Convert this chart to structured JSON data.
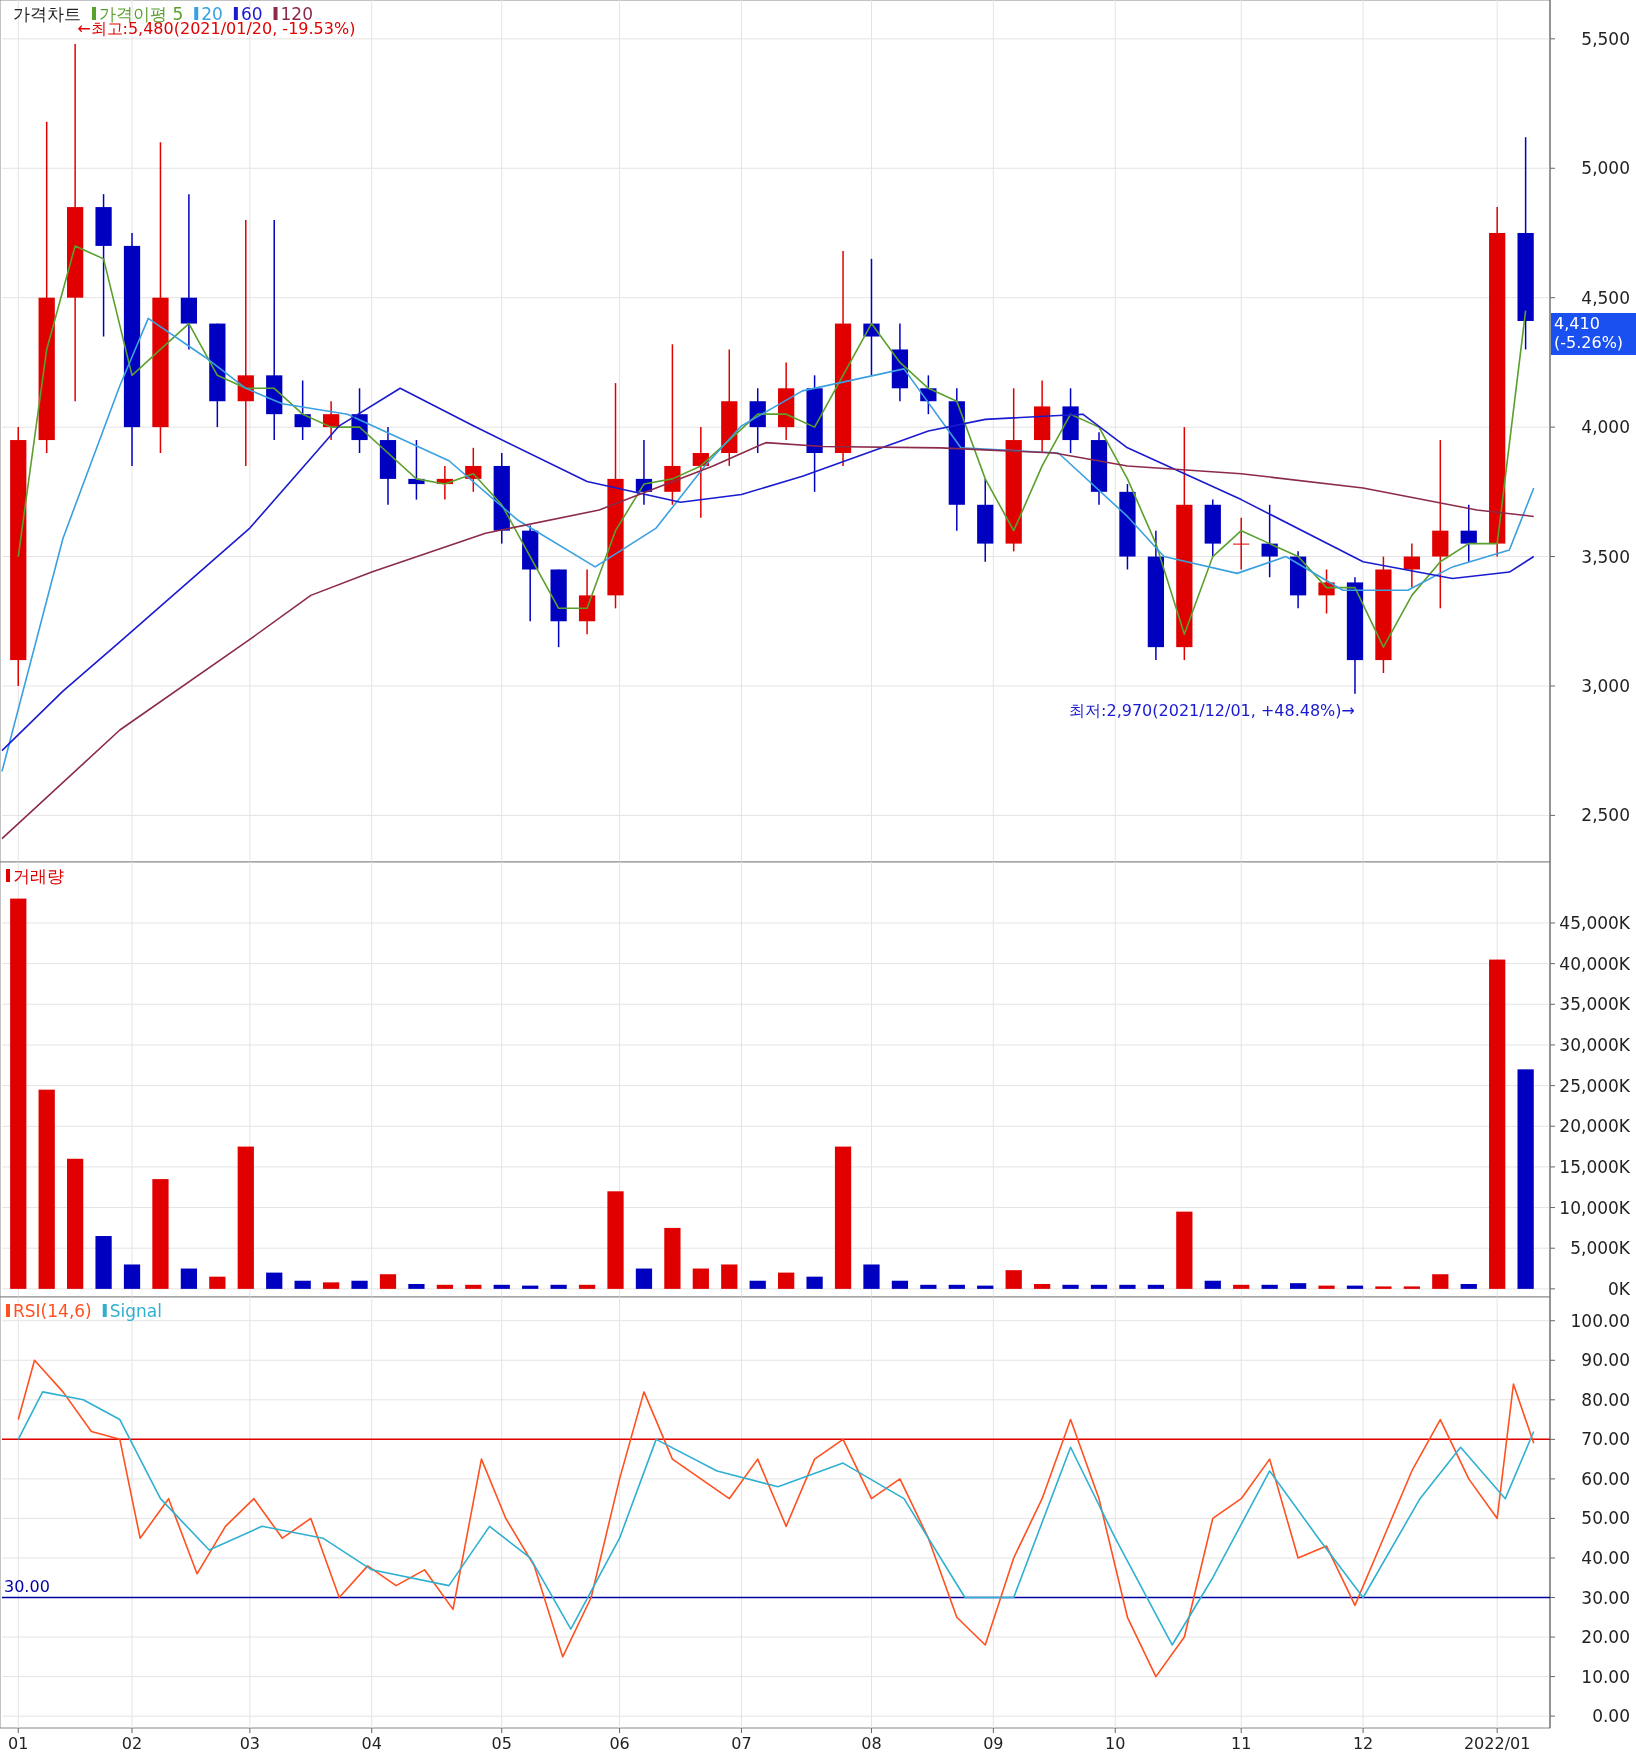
{
  "chart_data": [
    {
      "type": "candlestick",
      "title": "가격차트",
      "legend": "top left",
      "grid": true,
      "tick_labels": "y",
      "x": [
        "2021-01-04",
        "2021-01-11",
        "2021-01-18",
        "2021-01-25",
        "2021-02-01",
        "2021-02-08",
        "2021-02-15",
        "2021-02-22",
        "2021-03-01",
        "2021-03-08",
        "2021-03-15",
        "2021-03-22",
        "2021-03-29",
        "2021-04-05",
        "2021-04-12",
        "2021-04-19",
        "2021-04-26",
        "2021-05-03",
        "2021-05-10",
        "2021-05-17",
        "2021-05-24",
        "2021-05-31",
        "2021-06-07",
        "2021-06-14",
        "2021-06-21",
        "2021-06-28",
        "2021-07-05",
        "2021-07-12",
        "2021-07-19",
        "2021-07-26",
        "2021-08-02",
        "2021-08-09",
        "2021-08-16",
        "2021-08-23",
        "2021-08-30",
        "2021-09-06",
        "2021-09-13",
        "2021-09-20",
        "2021-09-27",
        "2021-10-04",
        "2021-10-11",
        "2021-10-18",
        "2021-10-25",
        "2021-11-01",
        "2021-11-08",
        "2021-11-15",
        "2021-11-22",
        "2021-11-29",
        "2021-12-06",
        "2021-12-13",
        "2021-12-20",
        "2021-12-27",
        "2022-01-03",
        "2022-01-10"
      ],
      "ohlc": [
        [
          3100,
          4000,
          3000,
          3950
        ],
        [
          3950,
          5180,
          3900,
          4500
        ],
        [
          4500,
          5480,
          4100,
          4850
        ],
        [
          4850,
          4900,
          4350,
          4700
        ],
        [
          4700,
          4750,
          3850,
          4000
        ],
        [
          4000,
          5100,
          3900,
          4500
        ],
        [
          4500,
          4900,
          4300,
          4400
        ],
        [
          4400,
          4400,
          4000,
          4100
        ],
        [
          4100,
          4800,
          3850,
          4200
        ],
        [
          4200,
          4800,
          3950,
          4050
        ],
        [
          4050,
          4180,
          3950,
          4000
        ],
        [
          4000,
          4100,
          3950,
          4050
        ],
        [
          4050,
          4150,
          3900,
          3950
        ],
        [
          3950,
          4000,
          3700,
          3800
        ],
        [
          3800,
          3950,
          3720,
          3780
        ],
        [
          3780,
          3850,
          3720,
          3800
        ],
        [
          3800,
          3920,
          3750,
          3850
        ],
        [
          3850,
          3900,
          3550,
          3600
        ],
        [
          3600,
          3620,
          3250,
          3450
        ],
        [
          3450,
          3450,
          3150,
          3250
        ],
        [
          3250,
          3450,
          3200,
          3350
        ],
        [
          3350,
          4170,
          3300,
          3800
        ],
        [
          3800,
          3950,
          3700,
          3750
        ],
        [
          3750,
          4320,
          3700,
          3850
        ],
        [
          3850,
          4000,
          3650,
          3900
        ],
        [
          3900,
          4300,
          3850,
          4100
        ],
        [
          4100,
          4150,
          3900,
          4000
        ],
        [
          4000,
          4250,
          3950,
          4150
        ],
        [
          4150,
          4200,
          3750,
          3900
        ],
        [
          3900,
          4680,
          3850,
          4400
        ],
        [
          4400,
          4650,
          4200,
          4350
        ],
        [
          4300,
          4400,
          4100,
          4150
        ],
        [
          4150,
          4200,
          4050,
          4100
        ],
        [
          4100,
          4150,
          3600,
          3700
        ],
        [
          3700,
          3800,
          3480,
          3550
        ],
        [
          3550,
          4150,
          3520,
          3950
        ],
        [
          3950,
          4180,
          3900,
          4080
        ],
        [
          4080,
          4150,
          3900,
          3950
        ],
        [
          3950,
          3980,
          3700,
          3750
        ],
        [
          3750,
          3780,
          3450,
          3500
        ],
        [
          3500,
          3600,
          3100,
          3150
        ],
        [
          3150,
          4000,
          3100,
          3700
        ],
        [
          3700,
          3720,
          3500,
          3550
        ],
        [
          3550,
          3650,
          3450,
          3550
        ],
        [
          3550,
          3700,
          3420,
          3500
        ],
        [
          3500,
          3520,
          3300,
          3350
        ],
        [
          3350,
          3450,
          3280,
          3400
        ],
        [
          3400,
          3420,
          2970,
          3100
        ],
        [
          3100,
          3500,
          3050,
          3450
        ],
        [
          3450,
          3550,
          3380,
          3500
        ],
        [
          3500,
          3950,
          3300,
          3600
        ],
        [
          3600,
          3700,
          3480,
          3550
        ],
        [
          3550,
          4850,
          3500,
          4750
        ],
        [
          4750,
          5120,
          4300,
          4410
        ]
      ],
      "colors": [
        "#e00000",
        "#e00000",
        "#e00000",
        "#0000c0",
        "#0000c0",
        "#e00000",
        "#0000c0",
        "#0000c0",
        "#e00000",
        "#0000c0",
        "#0000c0",
        "#e00000",
        "#0000c0",
        "#0000c0",
        "#0000c0",
        "#e00000",
        "#e00000",
        "#0000c0",
        "#0000c0",
        "#0000c0",
        "#e00000",
        "#e00000",
        "#0000c0",
        "#e00000",
        "#e00000",
        "#e00000",
        "#0000c0",
        "#e00000",
        "#0000c0",
        "#e00000",
        "#0000c0",
        "#0000c0",
        "#0000c0",
        "#0000c0",
        "#0000c0",
        "#e00000",
        "#e00000",
        "#0000c0",
        "#0000c0",
        "#0000c0",
        "#0000c0",
        "#e00000",
        "#0000c0",
        "#e00000",
        "#0000c0",
        "#0000c0",
        "#e00000",
        "#0000c0",
        "#e00000",
        "#e00000",
        "#e00000",
        "#0000c0",
        "#e00000",
        "#0000c0"
      ],
      "series": [
        {
          "type": "line",
          "name": "가격이평 5",
          "color": "#5aa02c",
          "values": [
            3500,
            4300,
            4700,
            4650,
            4200,
            4300,
            4400,
            4200,
            4150,
            4150,
            4050,
            4000,
            4000,
            3900,
            3800,
            3780,
            3820,
            3700,
            3500,
            3300,
            3300,
            3600,
            3780,
            3800,
            3850,
            3950,
            4050,
            4050,
            4000,
            4200,
            4400,
            4250,
            4150,
            4100,
            3800,
            3600,
            3850,
            4050,
            4000,
            3800,
            3550,
            3200,
            3500,
            3600,
            3550,
            3500,
            3380,
            3380,
            3150,
            3350,
            3480,
            3550,
            3550,
            4450
          ]
        },
        {
          "type": "line",
          "name": "20",
          "color": "#3aa0e0",
          "x": [
            "2020-12-31",
            "2021-01-15",
            "2021-01-29",
            "2021-02-05",
            "2021-02-19",
            "2021-03-01",
            "2021-03-10",
            "2021-03-26",
            "2021-04-20",
            "2021-05-07",
            "2021-05-26",
            "2021-06-10",
            "2021-06-22",
            "2021-07-01",
            "2021-07-16",
            "2021-08-10",
            "2021-08-24",
            "2021-09-17",
            "2021-10-04",
            "2021-10-13",
            "2021-10-31",
            "2021-11-12",
            "2021-11-26",
            "2021-12-12",
            "2021-12-23",
            "2022-01-06",
            "2022-01-12"
          ],
          "values": [
            2670,
            3570,
            4160,
            4420,
            4270,
            4150,
            4090,
            4050,
            3870,
            3640,
            3460,
            3610,
            3850,
            4005,
            4140,
            4225,
            3920,
            3900,
            3655,
            3500,
            3435,
            3500,
            3370,
            3370,
            3460,
            3525,
            3765
          ]
        },
        {
          "type": "line",
          "name": "60",
          "color": "#1a1ad0",
          "x": [
            "2020-12-31",
            "2021-01-15",
            "2021-01-29",
            "2021-03-02",
            "2021-03-24",
            "2021-04-08",
            "2021-04-26",
            "2021-05-24",
            "2021-06-16",
            "2021-07-01",
            "2021-07-16",
            "2021-08-16",
            "2021-08-30",
            "2021-09-23",
            "2021-10-04",
            "2021-11-01",
            "2021-12-01",
            "2021-12-23",
            "2022-01-06",
            "2022-01-12"
          ],
          "values": [
            2750,
            2980,
            3170,
            3610,
            4005,
            4150,
            4005,
            3790,
            3710,
            3740,
            3810,
            3985,
            4030,
            4050,
            3920,
            3720,
            3480,
            3415,
            3440,
            3500
          ]
        },
        {
          "type": "line",
          "name": "120",
          "color": "#8b2a4a",
          "x": [
            "2020-12-31",
            "2021-01-29",
            "2021-03-02",
            "2021-03-17",
            "2021-04-01",
            "2021-04-29",
            "2021-05-27",
            "2021-06-24",
            "2021-07-07",
            "2021-07-21",
            "2021-08-19",
            "2021-09-16",
            "2021-10-04",
            "2021-11-01",
            "2021-12-01",
            "2021-12-29",
            "2022-01-12"
          ],
          "values": [
            2410,
            2830,
            3180,
            3350,
            3440,
            3590,
            3680,
            3850,
            3940,
            3925,
            3920,
            3900,
            3850,
            3820,
            3765,
            3680,
            3655
          ]
        }
      ],
      "xlim": [
        "2020-12-31",
        "2022-01-16"
      ],
      "ylim": [
        2320,
        5650
      ],
      "xticks": [
        {
          "value": "2021-01-04",
          "label": null
        },
        {
          "value": "2021-02-01",
          "label": null
        },
        {
          "value": "2021-03-02",
          "label": null
        },
        {
          "value": "2021-04-01",
          "label": null
        },
        {
          "value": "2021-05-03",
          "label": null
        },
        {
          "value": "2021-06-01",
          "label": null
        },
        {
          "value": "2021-07-01",
          "label": null
        },
        {
          "value": "2021-08-02",
          "label": null
        },
        {
          "value": "2021-09-01",
          "label": null
        },
        {
          "value": "2021-10-01",
          "label": null
        },
        {
          "value": "2021-11-01",
          "label": null
        },
        {
          "value": "2021-12-01",
          "label": null
        },
        {
          "value": "2022-01-03",
          "label": null
        }
      ],
      "yticks": [
        {
          "value": 2500,
          "label": "2,500"
        },
        {
          "value": 3000,
          "label": "3,000"
        },
        {
          "value": 3500,
          "label": "3,500"
        },
        {
          "value": 4000,
          "label": "4,000"
        },
        {
          "value": 4500,
          "label": "4,500"
        },
        {
          "value": 5000,
          "label": "5,000"
        },
        {
          "value": 5500,
          "label": "5,500"
        }
      ],
      "annotations": [
        {
          "text": "←최고:5,480(2021/01/20, -19.53%)",
          "x": "2021-01-18",
          "y": 5480
        },
        {
          "text": "최저:2,970(2021/12/01, +48.48%)→",
          "x": "2021-11-29",
          "y": 2970
        },
        {
          "text": "4,410\n(-5.26%)",
          "x": "2022-01-10",
          "y": 4410
        }
      ]
    },
    {
      "type": "bar",
      "legend": "top left",
      "grid": true,
      "tick_labels": "y",
      "x": [
        "2021-01-04",
        "2021-01-11",
        "2021-01-18",
        "2021-01-25",
        "2021-02-01",
        "2021-02-08",
        "2021-02-15",
        "2021-02-22",
        "2021-03-01",
        "2021-03-08",
        "2021-03-15",
        "2021-03-22",
        "2021-03-29",
        "2021-04-05",
        "2021-04-12",
        "2021-04-19",
        "2021-04-26",
        "2021-05-03",
        "2021-05-10",
        "2021-05-17",
        "2021-05-24",
        "2021-05-31",
        "2021-06-07",
        "2021-06-14",
        "2021-06-21",
        "2021-06-28",
        "2021-07-05",
        "2021-07-12",
        "2021-07-19",
        "2021-07-26",
        "2021-08-02",
        "2021-08-09",
        "2021-08-16",
        "2021-08-23",
        "2021-08-30",
        "2021-09-06",
        "2021-09-13",
        "2021-09-20",
        "2021-09-27",
        "2021-10-04",
        "2021-10-11",
        "2021-10-18",
        "2021-10-25",
        "2021-11-01",
        "2021-11-08",
        "2021-11-15",
        "2021-11-22",
        "2021-11-29",
        "2021-12-06",
        "2021-12-13",
        "2021-12-20",
        "2021-12-27",
        "2022-01-03",
        "2022-01-10"
      ],
      "series": [
        {
          "name": "거래량",
          "color": "#e00000",
          "values": [
            48000,
            24500,
            16000,
            6500,
            3000,
            13500,
            2500,
            1500,
            17500,
            2000,
            1000,
            800,
            1000,
            1800,
            600,
            500,
            500,
            500,
            400,
            500,
            500,
            12000,
            2500,
            7500,
            2500,
            3000,
            1000,
            2000,
            1500,
            17500,
            3000,
            1000,
            500,
            500,
            400,
            2300,
            600,
            500,
            500,
            500,
            500,
            9500,
            1000,
            500,
            500,
            700,
            400,
            400,
            300,
            300,
            1800,
            600,
            40500,
            27000
          ],
          "colors": [
            "#e00000",
            "#e00000",
            "#e00000",
            "#0000c0",
            "#0000c0",
            "#e00000",
            "#0000c0",
            "#e00000",
            "#e00000",
            "#0000c0",
            "#0000c0",
            "#e00000",
            "#0000c0",
            "#e00000",
            "#0000c0",
            "#e00000",
            "#e00000",
            "#0000c0",
            "#0000c0",
            "#0000c0",
            "#e00000",
            "#e00000",
            "#0000c0",
            "#e00000",
            "#e00000",
            "#e00000",
            "#0000c0",
            "#e00000",
            "#0000c0",
            "#e00000",
            "#0000c0",
            "#0000c0",
            "#0000c0",
            "#0000c0",
            "#0000c0",
            "#e00000",
            "#e00000",
            "#0000c0",
            "#0000c0",
            "#0000c0",
            "#0000c0",
            "#e00000",
            "#0000c0",
            "#e00000",
            "#0000c0",
            "#0000c0",
            "#e00000",
            "#0000c0",
            "#e00000",
            "#e00000",
            "#e00000",
            "#0000c0",
            "#e00000",
            "#0000c0"
          ]
        }
      ],
      "xlim": [
        "2020-12-31",
        "2022-01-16"
      ],
      "ylim": [
        -1000,
        52500
      ],
      "xticks": [
        {
          "value": "2021-01-04",
          "label": null
        },
        {
          "value": "2021-02-01",
          "label": null
        },
        {
          "value": "2021-03-02",
          "label": null
        },
        {
          "value": "2021-04-01",
          "label": null
        },
        {
          "value": "2021-05-03",
          "label": null
        },
        {
          "value": "2021-06-01",
          "label": null
        },
        {
          "value": "2021-07-01",
          "label": null
        },
        {
          "value": "2021-08-02",
          "label": null
        },
        {
          "value": "2021-09-01",
          "label": null
        },
        {
          "value": "2021-10-01",
          "label": null
        },
        {
          "value": "2021-11-01",
          "label": null
        },
        {
          "value": "2021-12-01",
          "label": null
        },
        {
          "value": "2022-01-03",
          "label": null
        }
      ],
      "yticks": [
        {
          "value": 0,
          "label": "0K"
        },
        {
          "value": 5000,
          "label": "5,000K"
        },
        {
          "value": 10000,
          "label": "10,000K"
        },
        {
          "value": 15000,
          "label": "15,000K"
        },
        {
          "value": 20000,
          "label": "20,000K"
        },
        {
          "value": 25000,
          "label": "25,000K"
        },
        {
          "value": 30000,
          "label": "30,000K"
        },
        {
          "value": 35000,
          "label": "35,000K"
        },
        {
          "value": 40000,
          "label": "40,000K"
        },
        {
          "value": 45000,
          "label": "45,000K"
        }
      ]
    },
    {
      "type": "line",
      "legend": "top left",
      "grid": true,
      "series": [
        {
          "name": "RSI(14,6)",
          "color": "#ff5020",
          "x": [
            "2021-01-04",
            "2021-01-08",
            "2021-01-15",
            "2021-01-22",
            "2021-01-29",
            "2021-02-03",
            "2021-02-10",
            "2021-02-17",
            "2021-02-24",
            "2021-03-03",
            "2021-03-10",
            "2021-03-17",
            "2021-03-24",
            "2021-03-31",
            "2021-04-07",
            "2021-04-14",
            "2021-04-21",
            "2021-04-28",
            "2021-05-04",
            "2021-05-11",
            "2021-05-18",
            "2021-05-25",
            "2021-06-01",
            "2021-06-07",
            "2021-06-14",
            "2021-06-21",
            "2021-06-28",
            "2021-07-05",
            "2021-07-12",
            "2021-07-19",
            "2021-07-26",
            "2021-08-02",
            "2021-08-09",
            "2021-08-16",
            "2021-08-23",
            "2021-08-30",
            "2021-09-06",
            "2021-09-13",
            "2021-09-20",
            "2021-09-27",
            "2021-10-04",
            "2021-10-11",
            "2021-10-18",
            "2021-10-25",
            "2021-11-01",
            "2021-11-08",
            "2021-11-15",
            "2021-11-22",
            "2021-11-29",
            "2021-12-06",
            "2021-12-13",
            "2021-12-20",
            "2021-12-27",
            "2022-01-03",
            "2022-01-07",
            "2022-01-12"
          ],
          "values": [
            75,
            90,
            82,
            72,
            70,
            45,
            55,
            36,
            48,
            55,
            45,
            50,
            30,
            38,
            33,
            37,
            27,
            65,
            50,
            38,
            15,
            30,
            60,
            82,
            65,
            60,
            55,
            65,
            48,
            65,
            70,
            55,
            60,
            45,
            25,
            18,
            40,
            55,
            75,
            55,
            25,
            10,
            20,
            50,
            55,
            65,
            40,
            43,
            28,
            45,
            62,
            75,
            60,
            50,
            84,
            69
          ]
        },
        {
          "name": "Signal",
          "color": "#30b0d0",
          "x": [
            "2021-01-04",
            "2021-01-10",
            "2021-01-20",
            "2021-01-29",
            "2021-02-08",
            "2021-02-20",
            "2021-03-05",
            "2021-03-20",
            "2021-04-01",
            "2021-04-20",
            "2021-04-30",
            "2021-05-10",
            "2021-05-20",
            "2021-06-01",
            "2021-06-10",
            "2021-06-25",
            "2021-07-10",
            "2021-07-26",
            "2021-08-10",
            "2021-08-25",
            "2021-09-06",
            "2021-09-20",
            "2021-10-01",
            "2021-10-15",
            "2021-10-25",
            "2021-11-08",
            "2021-11-20",
            "2021-12-01",
            "2021-12-15",
            "2021-12-25",
            "2022-01-05",
            "2022-01-12"
          ],
          "values": [
            70,
            82,
            80,
            75,
            55,
            42,
            48,
            45,
            37,
            33,
            48,
            40,
            22,
            45,
            70,
            62,
            58,
            64,
            55,
            30,
            30,
            68,
            45,
            18,
            35,
            62,
            45,
            30,
            55,
            68,
            55,
            72
          ]
        }
      ],
      "ref_lines": [
        {
          "axis": "y",
          "value": 70,
          "color": "#e00000"
        },
        {
          "axis": "y",
          "value": 30,
          "label": "30.00",
          "color": "#0000a0"
        }
      ],
      "xlim": [
        "2020-12-31",
        "2022-01-16"
      ],
      "ylim": [
        -3,
        106
      ],
      "xticks": [
        {
          "value": "2021-01-04",
          "label": "01"
        },
        {
          "value": "2021-02-01",
          "label": "02"
        },
        {
          "value": "2021-03-02",
          "label": "03"
        },
        {
          "value": "2021-04-01",
          "label": "04"
        },
        {
          "value": "2021-05-03",
          "label": "05"
        },
        {
          "value": "2021-06-01",
          "label": "06"
        },
        {
          "value": "2021-07-01",
          "label": "07"
        },
        {
          "value": "2021-08-02",
          "label": "08"
        },
        {
          "value": "2021-09-01",
          "label": "09"
        },
        {
          "value": "2021-10-01",
          "label": "10"
        },
        {
          "value": "2021-11-01",
          "label": "11"
        },
        {
          "value": "2021-12-01",
          "label": "12"
        },
        {
          "value": "2022-01-03",
          "label": "2022/01"
        }
      ],
      "yticks": [
        {
          "value": 0,
          "label": "0.00"
        },
        {
          "value": 10,
          "label": "10.00"
        },
        {
          "value": 20,
          "label": "20.00"
        },
        {
          "value": 30,
          "label": "30.00"
        },
        {
          "value": 40,
          "label": "40.00"
        },
        {
          "value": 50,
          "label": "50.00"
        },
        {
          "value": 60,
          "label": "60.00"
        },
        {
          "value": 70,
          "label": "70.00"
        },
        {
          "value": 80,
          "label": "80.00"
        },
        {
          "value": 90,
          "label": "90.00"
        },
        {
          "value": 100,
          "label": "100.00"
        }
      ]
    }
  ]
}
